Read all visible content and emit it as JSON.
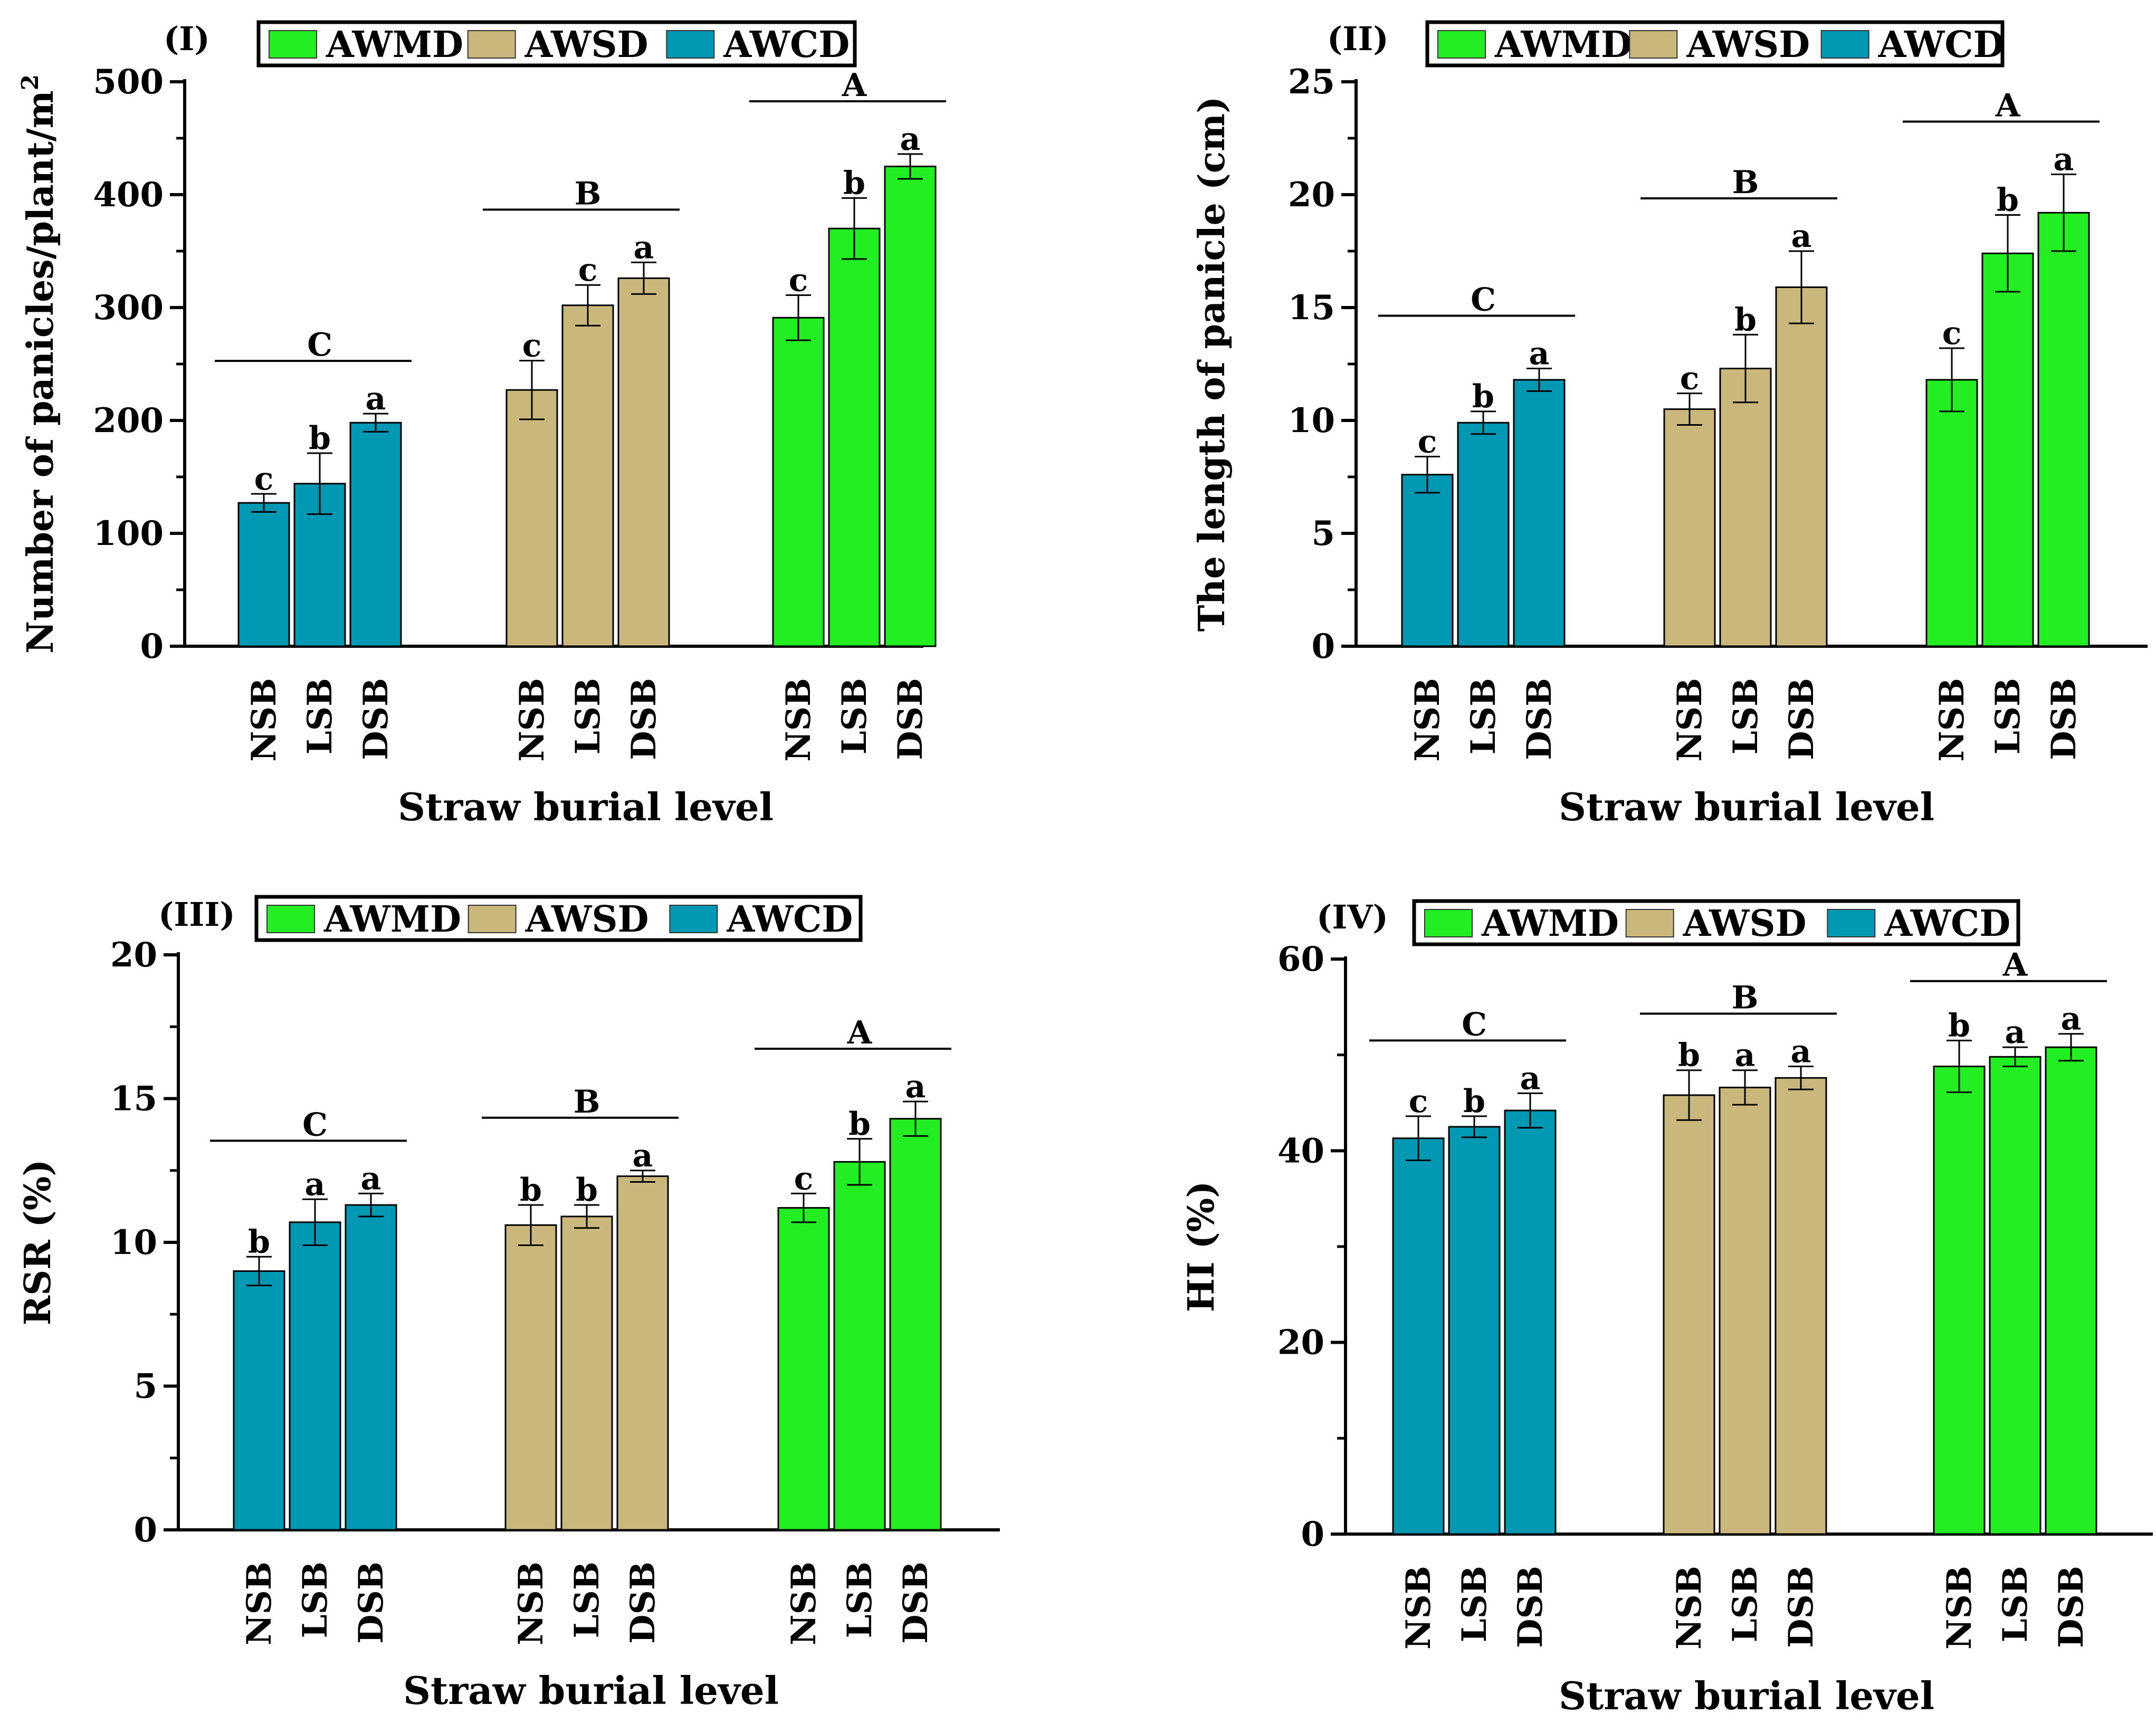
{
  "colors": {
    "AWMD": "#22ee22",
    "AWSD": "#c9b77c",
    "AWCD": "#0098b3"
  },
  "legend": [
    "AWMD",
    "AWSD",
    "AWCD"
  ],
  "chart_data": [
    {
      "type": "bar",
      "panel": "(I)",
      "ylabel": "Number of panicles/plant/m",
      "ylabel_superscript": "2",
      "xlabel": "Straw burial level",
      "ylim": [
        0,
        500
      ],
      "yticks": [
        "0",
        "100",
        "200",
        "300",
        "400",
        "500"
      ],
      "groups": [
        {
          "series": "AWCD",
          "letter": "C",
          "bars": [
            {
              "cat": "NSB",
              "value": 127,
              "err": 8,
              "sig": "c"
            },
            {
              "cat": "LSB",
              "value": 144,
              "err": 27,
              "sig": "b"
            },
            {
              "cat": "DSB",
              "value": 198,
              "err": 8,
              "sig": "a"
            }
          ]
        },
        {
          "series": "AWSD",
          "letter": "B",
          "bars": [
            {
              "cat": "NSB",
              "value": 227,
              "err": 26,
              "sig": "c"
            },
            {
              "cat": "LSB",
              "value": 302,
              "err": 18,
              "sig": "c"
            },
            {
              "cat": "DSB",
              "value": 326,
              "err": 14,
              "sig": "a"
            }
          ]
        },
        {
          "series": "AWMD",
          "letter": "A",
          "bars": [
            {
              "cat": "NSB",
              "value": 291,
              "err": 20,
              "sig": "c"
            },
            {
              "cat": "LSB",
              "value": 370,
              "err": 27,
              "sig": "b"
            },
            {
              "cat": "DSB",
              "value": 425,
              "err": 11,
              "sig": "a"
            }
          ]
        }
      ]
    },
    {
      "type": "bar",
      "panel": "(II)",
      "ylabel": "The length of panicle (cm)",
      "ylabel_superscript": "",
      "xlabel": "Straw burial level",
      "ylim": [
        0,
        25
      ],
      "yticks": [
        "0",
        "5",
        "10",
        "15",
        "20",
        "25"
      ],
      "groups": [
        {
          "series": "AWCD",
          "letter": "C",
          "bars": [
            {
              "cat": "NSB",
              "value": 7.6,
              "err": 0.8,
              "sig": "c"
            },
            {
              "cat": "LSB",
              "value": 9.9,
              "err": 0.5,
              "sig": "b"
            },
            {
              "cat": "DSB",
              "value": 11.8,
              "err": 0.5,
              "sig": "a"
            }
          ]
        },
        {
          "series": "AWSD",
          "letter": "B",
          "bars": [
            {
              "cat": "NSB",
              "value": 10.5,
              "err": 0.7,
              "sig": "c"
            },
            {
              "cat": "LSB",
              "value": 12.3,
              "err": 1.5,
              "sig": "b"
            },
            {
              "cat": "DSB",
              "value": 15.9,
              "err": 1.6,
              "sig": "a"
            }
          ]
        },
        {
          "series": "AWMD",
          "letter": "A",
          "bars": [
            {
              "cat": "NSB",
              "value": 11.8,
              "err": 1.4,
              "sig": "c"
            },
            {
              "cat": "LSB",
              "value": 17.4,
              "err": 1.7,
              "sig": "b"
            },
            {
              "cat": "DSB",
              "value": 19.2,
              "err": 1.7,
              "sig": "a"
            }
          ]
        }
      ]
    },
    {
      "type": "bar",
      "panel": "(III)",
      "ylabel": "RSR (%)",
      "ylabel_superscript": "",
      "xlabel": "Straw burial level",
      "ylim": [
        0,
        20
      ],
      "yticks": [
        "0",
        "5",
        "10",
        "15",
        "20"
      ],
      "groups": [
        {
          "series": "AWCD",
          "letter": "C",
          "bars": [
            {
              "cat": "NSB",
              "value": 9.0,
              "err": 0.5,
              "sig": "b"
            },
            {
              "cat": "LSB",
              "value": 10.7,
              "err": 0.8,
              "sig": "a"
            },
            {
              "cat": "DSB",
              "value": 11.3,
              "err": 0.4,
              "sig": "a"
            }
          ]
        },
        {
          "series": "AWSD",
          "letter": "B",
          "bars": [
            {
              "cat": "NSB",
              "value": 10.6,
              "err": 0.7,
              "sig": "b"
            },
            {
              "cat": "LSB",
              "value": 10.9,
              "err": 0.4,
              "sig": "b"
            },
            {
              "cat": "DSB",
              "value": 12.3,
              "err": 0.2,
              "sig": "a"
            }
          ]
        },
        {
          "series": "AWMD",
          "letter": "A",
          "bars": [
            {
              "cat": "NSB",
              "value": 11.2,
              "err": 0.5,
              "sig": "c"
            },
            {
              "cat": "LSB",
              "value": 12.8,
              "err": 0.8,
              "sig": "b"
            },
            {
              "cat": "DSB",
              "value": 14.3,
              "err": 0.6,
              "sig": "a"
            }
          ]
        }
      ]
    },
    {
      "type": "bar",
      "panel": "(IV)",
      "ylabel": "HI (%)",
      "ylabel_superscript": "",
      "xlabel": "Straw burial level",
      "ylim": [
        0,
        60
      ],
      "yticks": [
        "0",
        "20",
        "40",
        "60"
      ],
      "groups": [
        {
          "series": "AWCD",
          "letter": "C",
          "bars": [
            {
              "cat": "NSB",
              "value": 41.3,
              "err": 2.3,
              "sig": "c"
            },
            {
              "cat": "LSB",
              "value": 42.5,
              "err": 1.1,
              "sig": "b"
            },
            {
              "cat": "DSB",
              "value": 44.2,
              "err": 1.8,
              "sig": "a"
            }
          ]
        },
        {
          "series": "AWSD",
          "letter": "B",
          "bars": [
            {
              "cat": "NSB",
              "value": 45.8,
              "err": 2.6,
              "sig": "b"
            },
            {
              "cat": "LSB",
              "value": 46.6,
              "err": 1.8,
              "sig": "a"
            },
            {
              "cat": "DSB",
              "value": 47.6,
              "err": 1.2,
              "sig": "a"
            }
          ]
        },
        {
          "series": "AWMD",
          "letter": "A",
          "bars": [
            {
              "cat": "NSB",
              "value": 48.8,
              "err": 2.7,
              "sig": "b"
            },
            {
              "cat": "LSB",
              "value": 49.8,
              "err": 1.0,
              "sig": "a"
            },
            {
              "cat": "DSB",
              "value": 50.8,
              "err": 1.4,
              "sig": "a"
            }
          ]
        }
      ]
    }
  ]
}
